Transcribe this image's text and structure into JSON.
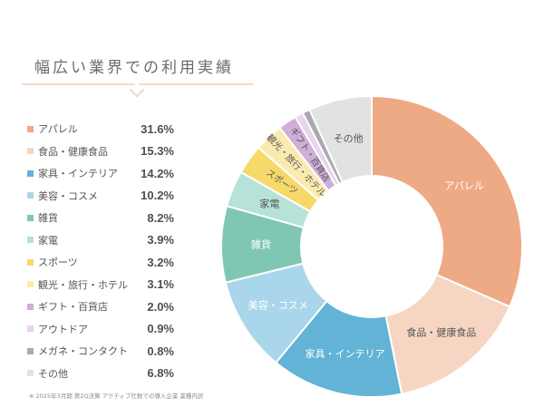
{
  "header": {
    "title": "幅広い業界での利用実績"
  },
  "footnote": "※ 2025年3月期 第2Q決算 アクティブ社数での導入企業 業種内訳",
  "chart_data": {
    "type": "pie",
    "variant": "donut",
    "start_angle_deg": 0,
    "direction": "clockwise",
    "legend_position": "left",
    "categories": [
      "アパレル",
      "食品・健康食品",
      "家具・インテリア",
      "美容・コスメ",
      "雑貨",
      "家電",
      "スポーツ",
      "観光・旅行・ホテル",
      "ギフト・百貨店",
      "アウトドア",
      "メガネ・コンタクト",
      "その他"
    ],
    "values": [
      31.6,
      15.3,
      14.2,
      10.2,
      8.2,
      3.9,
      3.2,
      3.1,
      2.0,
      0.9,
      0.8,
      6.8
    ],
    "value_labels": [
      "31.6%",
      "15.3%",
      "14.2%",
      "10.2%",
      "8.2%",
      "3.9%",
      "3.2%",
      "3.1%",
      "2.0%",
      "0.9%",
      "0.8%",
      "6.8%"
    ],
    "colors": [
      "#eea985",
      "#f6d6c2",
      "#62b3d6",
      "#a9d6ea",
      "#7fc7b3",
      "#b6e2d7",
      "#f7d96a",
      "#fbeab0",
      "#cfaed7",
      "#e9d3ef",
      "#aaaaaa",
      "#e2e2e2"
    ],
    "slice_label_colors": [
      "#ffffff",
      "#555555",
      "#ffffff",
      "#ffffff",
      "#ffffff",
      "#555555",
      "#555555",
      "#555555",
      "#555555",
      "",
      "",
      "#555555"
    ],
    "slice_label_rotated": [
      false,
      false,
      false,
      false,
      false,
      false,
      true,
      true,
      true,
      false,
      false,
      false
    ],
    "slice_labels": [
      "アパレル",
      "食品・健康食品",
      "家具・インテリア",
      "美容・コスメ",
      "雑貨",
      "家電",
      "スポーツ",
      "観光・旅行・ホテル",
      "ギフト・百貨店",
      "",
      "",
      "その他"
    ]
  }
}
